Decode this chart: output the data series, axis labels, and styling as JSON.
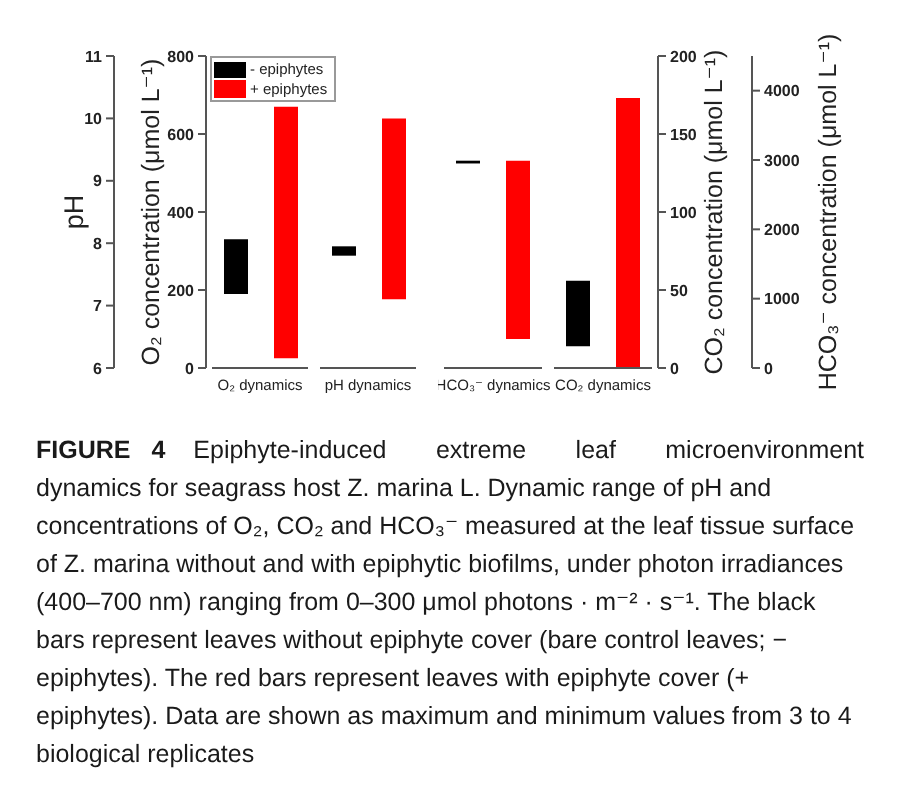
{
  "chart_data": [
    {
      "type": "bar",
      "categories": [
        "O₂ dynamics",
        "pH dynamics"
      ],
      "series": [
        {
          "name": "- epiphytes",
          "color": "#000000",
          "values": [
            140,
            null
          ],
          "base": [
            190,
            null
          ]
        },
        {
          "name": "+ epiphytes",
          "color": "#ff0000",
          "values": [
            645,
            null
          ],
          "base": [
            25,
            null
          ]
        },
        {
          "color": "#000000",
          "axis": "y2",
          "values": [
            null,
            0.15
          ],
          "base": [
            null,
            7.8
          ]
        },
        {
          "color": "#ff0000",
          "axis": "y2",
          "values": [
            null,
            2.9
          ],
          "base": [
            null,
            7.1
          ]
        }
      ],
      "ylabel": "O₂ concentration (μmol L⁻¹)",
      "ylim": [
        0,
        800
      ],
      "yticks": [
        0,
        200,
        400,
        600,
        800
      ],
      "y2label": "pH",
      "y2lim": [
        6,
        11
      ],
      "y2ticks": [
        6,
        7,
        8,
        9,
        10,
        11
      ],
      "legend": "top left",
      "annotations": [
        "FIGURE 4",
        "Epiphyte-induced extreme leaf microenvironment",
        "dynamics for seagrass host Z. marina L. Dynamic range of pH and concentrations of O₂, CO₂ and HCO₃⁻ measured at the leaf tissue surface of Z. marina without and with epiphytic biofilms, under photon irradiances (400–700 nm) ranging from 0–300 μmol photons · m⁻² · s⁻¹. The black bars represent leaves without epiphyte cover (bare control leaves; − epiphytes). The red bars represent leaves with epiphyte cover (+ epiphytes). Data are shown as maximum and minimum values from 3 to 4 biological replicates"
      ]
    },
    {
      "type": "bar",
      "categories": [
        "HCO₃⁻ dynamics",
        "CO₂ dynamics"
      ],
      "series": [
        {
          "color": "#000000",
          "axis": "y2",
          "values": [
            40,
            null
          ],
          "base": [
            2950,
            null
          ]
        },
        {
          "color": "#ff0000",
          "axis": "y2",
          "values": [
            2570,
            null
          ],
          "base": [
            420,
            null
          ]
        },
        {
          "color": "#000000",
          "values": [
            null,
            42
          ],
          "base": [
            null,
            14
          ]
        },
        {
          "color": "#ff0000",
          "values": [
            null,
            173
          ],
          "base": [
            null,
            0
          ]
        }
      ],
      "ylabel": "CO₂ concentration (μmol L⁻¹)",
      "ylim": [
        0,
        200
      ],
      "yticks": [
        0,
        50,
        100,
        150,
        200
      ],
      "y2label": "HCO₃⁻ concentration (μmol L⁻¹)",
      "y2lim": [
        0,
        4500
      ],
      "y2ticks": [
        0,
        1000,
        2000,
        3000,
        4000
      ]
    }
  ]
}
